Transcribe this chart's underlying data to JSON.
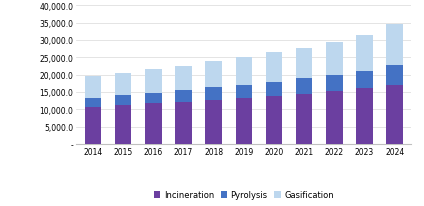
{
  "years": [
    2014,
    2015,
    2016,
    2017,
    2018,
    2019,
    2020,
    2021,
    2022,
    2023,
    2024
  ],
  "incineration": [
    10500,
    11100,
    11700,
    12200,
    12700,
    13200,
    13700,
    14500,
    15300,
    16000,
    17000
  ],
  "pyrolysis": [
    2800,
    2900,
    3100,
    3300,
    3600,
    3800,
    4200,
    4400,
    4700,
    5100,
    5700
  ],
  "gasification": [
    6200,
    6500,
    6700,
    7000,
    7500,
    8000,
    8600,
    8900,
    9500,
    10400,
    11800
  ],
  "colors": {
    "incineration": "#6B3FA0",
    "pyrolysis": "#4472C4",
    "gasification": "#BDD7EE"
  },
  "ylim": [
    0,
    40000
  ],
  "yticks": [
    0,
    5000,
    10000,
    15000,
    20000,
    25000,
    30000,
    35000,
    40000
  ],
  "ytick_labels": [
    "-",
    "5,000.0",
    "10,000.0",
    "15,000.0",
    "20,000.0",
    "25,000.0",
    "30,000.0",
    "35,000.0",
    "40,000.0"
  ],
  "legend_labels": [
    "Incineration",
    "Pyrolysis",
    "Gasification"
  ],
  "bar_width": 0.55,
  "background_color": "#ffffff",
  "grid_color": "#d9d9d9",
  "figsize": [
    4.24,
    2.07
  ],
  "dpi": 100
}
